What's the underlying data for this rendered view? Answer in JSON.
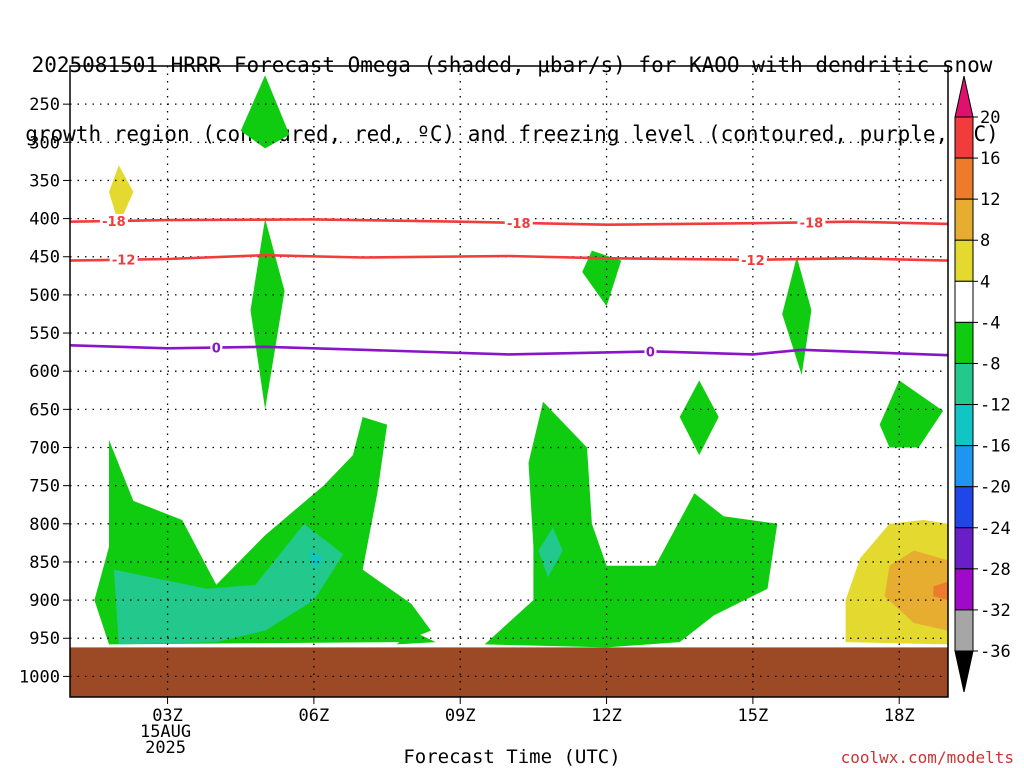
{
  "title": "2025081501 HRRR Forecast Omega (shaded, μbar/s) for KAOO with dendritic snow growth region (contoured, red, ºC) and freezing level (contoured, purple, ºC)",
  "title_lines": [
    "2025081501 HRRR Forecast Omega (shaded, μbar/s) for KAOO with dendritic snow",
    "growth region (contoured, red, ºC) and freezing level (contoured, purple, ºC)"
  ],
  "xlabel": "Forecast Time (UTC)",
  "credit": "coolwx.com/modelts",
  "chart_data": {
    "type": "heatmap",
    "description_units": "pressure (hPa) vs forecast hour",
    "x_axis": {
      "range": [
        1,
        19
      ],
      "ticks": [
        {
          "value": 3,
          "label": "03Z",
          "sublabels": [
            "15AUG",
            "2025"
          ]
        },
        {
          "value": 6,
          "label": "06Z"
        },
        {
          "value": 9,
          "label": "09Z"
        },
        {
          "value": 12,
          "label": "12Z"
        },
        {
          "value": 15,
          "label": "15Z"
        },
        {
          "value": 18,
          "label": "18Z"
        }
      ]
    },
    "y_axis": {
      "range": [
        1027,
        200
      ],
      "inverted": true,
      "ticks": [
        250,
        300,
        350,
        400,
        450,
        500,
        550,
        600,
        650,
        700,
        750,
        800,
        850,
        900,
        950,
        1000
      ],
      "grid": true
    },
    "colorbar": {
      "labels": [
        "20",
        "16",
        "12",
        "8",
        "4",
        "-4",
        "-8",
        "-12",
        "-16",
        "-20",
        "-24",
        "-28",
        "-32",
        "-36"
      ],
      "colors": [
        "#e0116e",
        "#f23c3c",
        "#ec7c2b",
        "#e6ad31",
        "#e3d92f",
        "#ffffff",
        "#10cc10",
        "#22c88c",
        "#11c5c5",
        "#1e96f0",
        "#1f46e6",
        "#6a1ec8",
        "#9e0ac8",
        "#a6a6a6",
        "#000000"
      ]
    },
    "ground": {
      "color": "#9c4a26",
      "top_hpa": 962
    },
    "omega_regions": [
      {
        "color": "#10cc10",
        "points": [
          [
            5.0,
            212
          ],
          [
            5.5,
            290
          ],
          [
            5.0,
            308
          ],
          [
            4.5,
            285
          ]
        ]
      },
      {
        "color": "#e3d92f",
        "points": [
          [
            2.0,
            330
          ],
          [
            2.3,
            365
          ],
          [
            2.0,
            408
          ],
          [
            1.8,
            365
          ]
        ]
      },
      {
        "color": "#10cc10",
        "points": [
          [
            5.0,
            400
          ],
          [
            5.4,
            495
          ],
          [
            5.0,
            650
          ],
          [
            4.7,
            520
          ]
        ]
      },
      {
        "color": "#10cc10",
        "points": [
          [
            11.7,
            442
          ],
          [
            12.3,
            455
          ],
          [
            12.0,
            515
          ],
          [
            11.5,
            470
          ]
        ]
      },
      {
        "color": "#10cc10",
        "points": [
          [
            15.9,
            450
          ],
          [
            16.2,
            520
          ],
          [
            16.0,
            605
          ],
          [
            15.6,
            525
          ]
        ]
      },
      {
        "color": "#10cc10",
        "points": [
          [
            13.9,
            612
          ],
          [
            14.3,
            660
          ],
          [
            13.9,
            710
          ],
          [
            13.5,
            660
          ]
        ]
      },
      {
        "color": "#10cc10",
        "points": [
          [
            18.0,
            612
          ],
          [
            18.9,
            652
          ],
          [
            18.4,
            700
          ],
          [
            17.8,
            700
          ],
          [
            17.6,
            670
          ]
        ]
      },
      {
        "color": "#10cc10",
        "points": [
          [
            1.8,
            690
          ],
          [
            2.3,
            770
          ],
          [
            3.3,
            795
          ],
          [
            4.0,
            880
          ],
          [
            5.0,
            815
          ],
          [
            6.2,
            750
          ],
          [
            6.8,
            710
          ],
          [
            7.0,
            660
          ],
          [
            7.5,
            670
          ],
          [
            7.3,
            760
          ],
          [
            7.0,
            860
          ],
          [
            8.0,
            905
          ],
          [
            8.4,
            940
          ],
          [
            7.8,
            955
          ],
          [
            1.8,
            958
          ],
          [
            1.5,
            900
          ],
          [
            1.8,
            830
          ]
        ]
      },
      {
        "color": "#10cc10",
        "points": [
          [
            10.7,
            640
          ],
          [
            11.6,
            700
          ],
          [
            11.7,
            800
          ],
          [
            12.0,
            855
          ],
          [
            13.0,
            855
          ],
          [
            13.8,
            760
          ],
          [
            14.4,
            790
          ],
          [
            15.5,
            800
          ],
          [
            15.3,
            885
          ],
          [
            14.2,
            920
          ],
          [
            13.5,
            955
          ],
          [
            12.0,
            962
          ],
          [
            9.5,
            958
          ],
          [
            10.5,
            900
          ],
          [
            10.5,
            830
          ],
          [
            10.4,
            720
          ]
        ]
      },
      {
        "color": "#10cc10",
        "points": [
          [
            8.0,
            940
          ],
          [
            8.5,
            955
          ],
          [
            7.7,
            958
          ]
        ]
      },
      {
        "color": "#22c88c",
        "points": [
          [
            1.9,
            860
          ],
          [
            3.8,
            885
          ],
          [
            4.8,
            880
          ],
          [
            5.8,
            800
          ],
          [
            6.6,
            840
          ],
          [
            6.0,
            900
          ],
          [
            5.0,
            940
          ],
          [
            4.0,
            955
          ],
          [
            2.0,
            958
          ]
        ]
      },
      {
        "color": "#11c5c5",
        "points": [
          [
            5.9,
            835
          ],
          [
            6.2,
            845
          ],
          [
            6.0,
            860
          ]
        ]
      },
      {
        "color": "#22c88c",
        "points": [
          [
            10.9,
            805
          ],
          [
            11.1,
            835
          ],
          [
            10.8,
            870
          ],
          [
            10.6,
            835
          ]
        ]
      },
      {
        "color": "#e3d92f",
        "points": [
          [
            17.2,
            845
          ],
          [
            17.8,
            800
          ],
          [
            18.5,
            795
          ],
          [
            19.0,
            800
          ],
          [
            19.0,
            958
          ],
          [
            16.9,
            955
          ],
          [
            16.9,
            900
          ]
        ]
      },
      {
        "color": "#e6ad31",
        "points": [
          [
            17.8,
            855
          ],
          [
            18.3,
            835
          ],
          [
            19.0,
            848
          ],
          [
            19.0,
            940
          ],
          [
            18.3,
            930
          ],
          [
            17.7,
            895
          ]
        ]
      },
      {
        "color": "#ec7c2b",
        "points": [
          [
            18.7,
            882
          ],
          [
            19.0,
            876
          ],
          [
            19.0,
            900
          ],
          [
            18.7,
            895
          ]
        ]
      }
    ],
    "temperature_contours": [
      {
        "label": "-18",
        "color": "#f23c3c",
        "points": [
          [
            1,
            404
          ],
          [
            3,
            402
          ],
          [
            6,
            401
          ],
          [
            9,
            404
          ],
          [
            12,
            408
          ],
          [
            15,
            406
          ],
          [
            17,
            404
          ],
          [
            19,
            407
          ]
        ],
        "label_x": [
          1.9,
          10.2,
          16.2
        ]
      },
      {
        "label": "-12",
        "color": "#f23c3c",
        "points": [
          [
            1,
            455
          ],
          [
            3,
            453
          ],
          [
            5,
            448
          ],
          [
            7,
            451
          ],
          [
            10,
            449
          ],
          [
            12,
            452
          ],
          [
            15,
            454
          ],
          [
            17,
            452
          ],
          [
            19,
            455
          ]
        ],
        "label_x": [
          2.1,
          15.0
        ]
      },
      {
        "label": "0",
        "color": "#8a14c8",
        "points": [
          [
            1,
            566
          ],
          [
            3,
            570
          ],
          [
            5,
            568
          ],
          [
            7,
            572
          ],
          [
            10,
            578
          ],
          [
            13,
            574
          ],
          [
            15,
            578
          ],
          [
            16,
            572
          ],
          [
            19,
            579
          ]
        ],
        "label_x": [
          4.0,
          12.9
        ]
      }
    ]
  }
}
